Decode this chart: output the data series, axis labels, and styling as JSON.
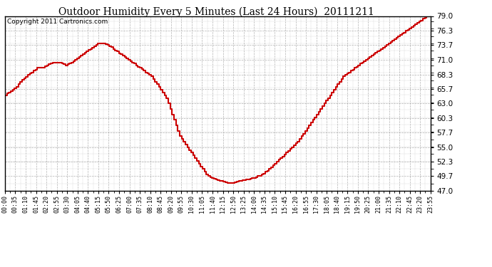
{
  "title": "Outdoor Humidity Every 5 Minutes (Last 24 Hours)  20111211",
  "copyright": "Copyright 2011 Cartronics.com",
  "line_color": "#cc0000",
  "bg_color": "#ffffff",
  "plot_bg_color": "#ffffff",
  "grid_color": "#aaaaaa",
  "ylim": [
    47.0,
    79.0
  ],
  "yticks": [
    47.0,
    49.7,
    52.3,
    55.0,
    57.7,
    60.3,
    63.0,
    65.7,
    68.3,
    71.0,
    73.7,
    76.3,
    79.0
  ],
  "x_tick_labels": [
    "00:00",
    "00:35",
    "01:10",
    "01:45",
    "02:20",
    "02:55",
    "03:30",
    "04:05",
    "04:40",
    "05:15",
    "05:50",
    "06:25",
    "07:00",
    "07:35",
    "08:10",
    "08:45",
    "09:20",
    "09:55",
    "10:30",
    "11:05",
    "11:40",
    "12:15",
    "12:50",
    "13:25",
    "14:00",
    "14:35",
    "15:10",
    "15:45",
    "16:20",
    "16:55",
    "17:30",
    "18:05",
    "18:40",
    "19:15",
    "19:50",
    "20:25",
    "21:00",
    "21:35",
    "22:10",
    "22:45",
    "23:20",
    "23:55"
  ],
  "humidity": [
    64.5,
    64.8,
    65.0,
    65.3,
    65.5,
    65.8,
    66.0,
    66.5,
    67.0,
    67.3,
    67.6,
    67.9,
    68.2,
    68.5,
    68.7,
    69.0,
    69.2,
    69.5,
    69.5,
    69.5,
    69.6,
    69.8,
    70.0,
    70.2,
    70.3,
    70.5,
    70.5,
    70.5,
    70.5,
    70.5,
    70.3,
    70.2,
    70.0,
    70.2,
    70.3,
    70.5,
    70.7,
    71.0,
    71.2,
    71.5,
    71.8,
    72.0,
    72.3,
    72.5,
    72.8,
    73.0,
    73.2,
    73.5,
    73.7,
    74.0,
    74.0,
    74.0,
    74.0,
    73.9,
    73.7,
    73.5,
    73.3,
    73.0,
    72.7,
    72.5,
    72.2,
    72.0,
    71.8,
    71.5,
    71.2,
    71.0,
    70.7,
    70.5,
    70.3,
    70.0,
    69.7,
    69.5,
    69.3,
    69.0,
    68.7,
    68.5,
    68.2,
    68.0,
    67.5,
    67.0,
    66.5,
    66.0,
    65.5,
    65.0,
    64.5,
    64.0,
    63.0,
    62.0,
    61.0,
    60.0,
    59.0,
    58.0,
    57.0,
    56.5,
    56.0,
    55.5,
    55.0,
    54.5,
    54.0,
    53.5,
    53.0,
    52.5,
    52.0,
    51.5,
    51.0,
    50.5,
    50.0,
    49.7,
    49.5,
    49.3,
    49.2,
    49.1,
    49.0,
    48.9,
    48.8,
    48.7,
    48.6,
    48.5,
    48.5,
    48.5,
    48.5,
    48.6,
    48.7,
    48.8,
    48.9,
    49.0,
    49.0,
    49.1,
    49.1,
    49.2,
    49.3,
    49.4,
    49.5,
    49.7,
    49.8,
    50.0,
    50.2,
    50.5,
    50.7,
    51.0,
    51.3,
    51.7,
    52.0,
    52.3,
    52.7,
    53.0,
    53.3,
    53.7,
    54.0,
    54.3,
    54.7,
    55.0,
    55.3,
    55.7,
    56.0,
    56.5,
    57.0,
    57.5,
    58.0,
    58.5,
    59.0,
    59.5,
    60.0,
    60.5,
    61.0,
    61.5,
    62.0,
    62.5,
    63.0,
    63.5,
    64.0,
    64.5,
    65.0,
    65.5,
    66.0,
    66.5,
    67.0,
    67.5,
    68.0,
    68.3,
    68.5,
    68.7,
    69.0,
    69.2,
    69.5,
    69.7,
    70.0,
    70.3,
    70.5,
    70.7,
    71.0,
    71.3,
    71.5,
    71.8,
    72.0,
    72.3,
    72.5,
    72.7,
    73.0,
    73.2,
    73.5,
    73.7,
    74.0,
    74.2,
    74.5,
    74.8,
    75.0,
    75.3,
    75.5,
    75.8,
    76.0,
    76.3,
    76.5,
    76.7,
    77.0,
    77.2,
    77.5,
    77.7,
    78.0,
    78.2,
    78.5,
    78.7,
    79.0,
    79.2,
    79.3
  ]
}
